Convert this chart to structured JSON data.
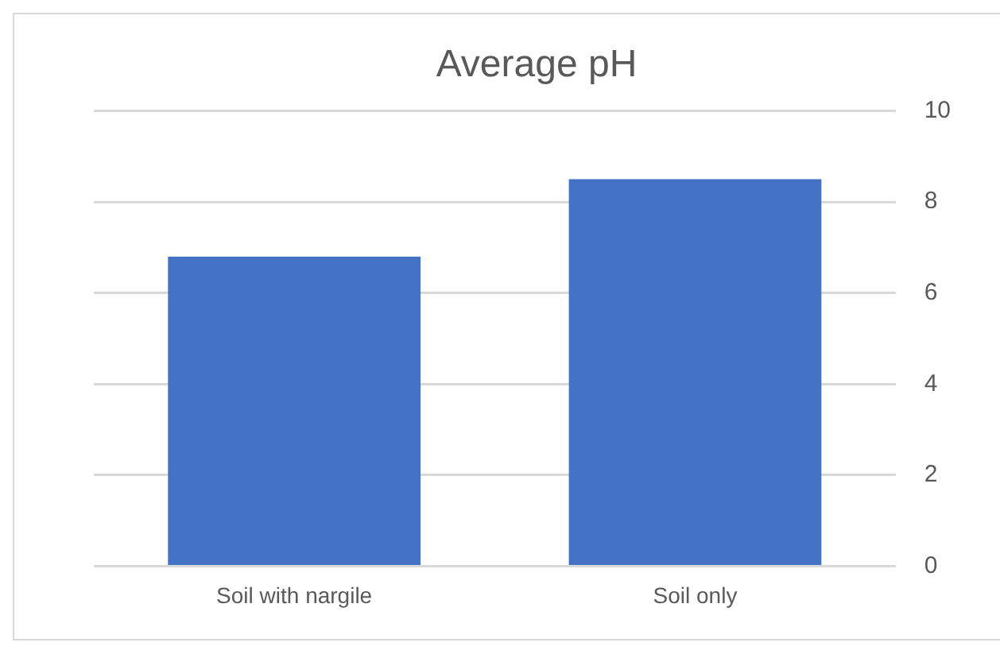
{
  "chart_data": {
    "type": "bar",
    "title": "Average pH",
    "categories": [
      "Soil with nargile",
      "Soil only"
    ],
    "values": [
      6.8,
      8.5
    ],
    "color": "#4472c4",
    "ylim": [
      0,
      10
    ],
    "yticks": [
      0,
      2,
      4,
      6,
      8,
      10
    ],
    "grid": "y"
  }
}
